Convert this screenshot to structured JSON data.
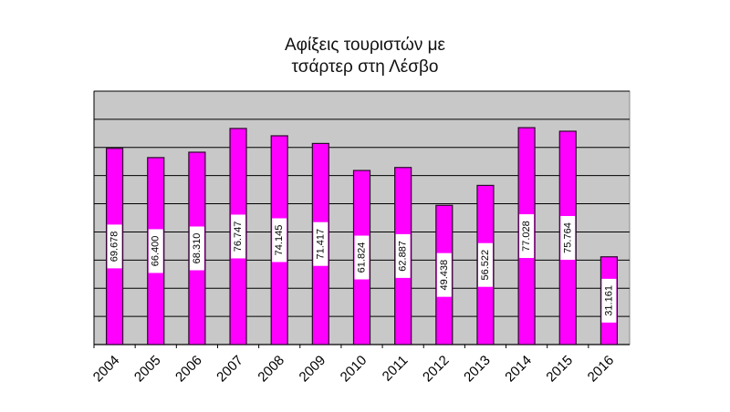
{
  "chart_data": {
    "type": "bar",
    "title_line1": "Αφίξεις τουριστών με",
    "title_line2": "τσάρτερ στη Λέσβο",
    "categories": [
      "2004",
      "2005",
      "2006",
      "2007",
      "2008",
      "2009",
      "2010",
      "2011",
      "2012",
      "2013",
      "2014",
      "2015",
      "2016"
    ],
    "values": [
      69678,
      66400,
      68310,
      76747,
      74145,
      71417,
      61824,
      62887,
      49438,
      56522,
      77028,
      75764,
      31161
    ],
    "data_labels": [
      "69.678",
      "66.400",
      "68.310",
      "76.747",
      "74.145",
      "71.417",
      "61.824",
      "62.887",
      "49.438",
      "56.522",
      "77.028",
      "75.764",
      "31.161"
    ],
    "ylim": [
      0,
      90000
    ],
    "gridline_step": 10000,
    "grid": true,
    "legend": "none",
    "colors": {
      "bar": "#ff00ff",
      "bar_edge": "#2a0a2a",
      "plot_bg": "#c8c8c8",
      "gridline": "#000000",
      "label_box": "#ffffff"
    }
  }
}
